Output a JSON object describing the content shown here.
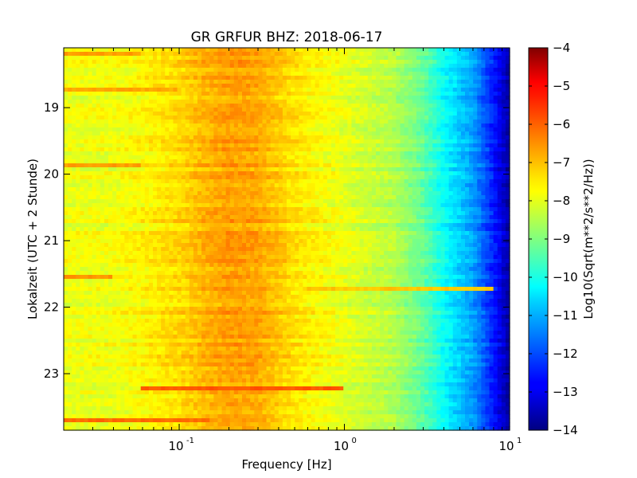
{
  "chart_data": {
    "type": "heatmap",
    "title": "GR GRFUR BHZ: 2018-06-17",
    "xlabel": "Frequency [Hz]",
    "ylabel": "Lokalzeit (UTC + 2 Stunde)",
    "xscale": "log",
    "xlim": [
      0.02,
      10
    ],
    "ylim": [
      18.1,
      23.85
    ],
    "y_inverted": true,
    "x_ticks": [
      {
        "value": 0.1,
        "base": "10",
        "exp": "-1"
      },
      {
        "value": 1,
        "base": "10",
        "exp": "0"
      },
      {
        "value": 10,
        "base": "10",
        "exp": "1"
      }
    ],
    "y_ticks": [
      {
        "value": 19,
        "label": "19"
      },
      {
        "value": 20,
        "label": "20"
      },
      {
        "value": 21,
        "label": "21"
      },
      {
        "value": 22,
        "label": "22"
      },
      {
        "value": 23,
        "label": "23"
      }
    ],
    "colorbar": {
      "label": "Log10(Sqrt(m**2/s**2/Hz))",
      "min": -14,
      "max": -4,
      "ticks": [
        {
          "value": -4,
          "label": "−4"
        },
        {
          "value": -5,
          "label": "−5"
        },
        {
          "value": -6,
          "label": "−6"
        },
        {
          "value": -7,
          "label": "−7"
        },
        {
          "value": -8,
          "label": "−8"
        },
        {
          "value": -9,
          "label": "−9"
        },
        {
          "value": -10,
          "label": "−10"
        },
        {
          "value": -11,
          "label": "−11"
        },
        {
          "value": -12,
          "label": "−12"
        },
        {
          "value": -13,
          "label": "−13"
        },
        {
          "value": -14,
          "label": "−14"
        }
      ]
    },
    "colormap": "jet",
    "mean_spectrum": [
      {
        "f": 0.02,
        "v": -7.9
      },
      {
        "f": 0.04,
        "v": -7.9
      },
      {
        "f": 0.06,
        "v": -7.7
      },
      {
        "f": 0.1,
        "v": -7.4
      },
      {
        "f": 0.15,
        "v": -7.0
      },
      {
        "f": 0.2,
        "v": -6.8
      },
      {
        "f": 0.3,
        "v": -6.9
      },
      {
        "f": 0.5,
        "v": -7.5
      },
      {
        "f": 1.0,
        "v": -8.0
      },
      {
        "f": 2.0,
        "v": -8.5
      },
      {
        "f": 3.0,
        "v": -9.3
      },
      {
        "f": 4.0,
        "v": -10.2
      },
      {
        "f": 6.0,
        "v": -11.2
      },
      {
        "f": 8.0,
        "v": -12.5
      },
      {
        "f": 10.0,
        "v": -13.7
      }
    ],
    "events": [
      {
        "time": 21.7,
        "fmin": 0.6,
        "fmax": 8.0,
        "v": -7.2
      },
      {
        "time": 23.2,
        "fmin": 0.06,
        "fmax": 1.0,
        "v": -6.1
      },
      {
        "time": 23.7,
        "fmin": 0.02,
        "fmax": 0.15,
        "v": -6.3
      },
      {
        "time": 21.52,
        "fmin": 0.02,
        "fmax": 0.04,
        "v": -6.7
      },
      {
        "time": 19.87,
        "fmin": 0.02,
        "fmax": 0.06,
        "v": -6.8
      },
      {
        "time": 18.75,
        "fmin": 0.02,
        "fmax": 0.1,
        "v": -6.9
      },
      {
        "time": 18.2,
        "fmin": 0.02,
        "fmax": 0.06,
        "v": -6.8
      }
    ],
    "grid": false,
    "legend": "none"
  }
}
